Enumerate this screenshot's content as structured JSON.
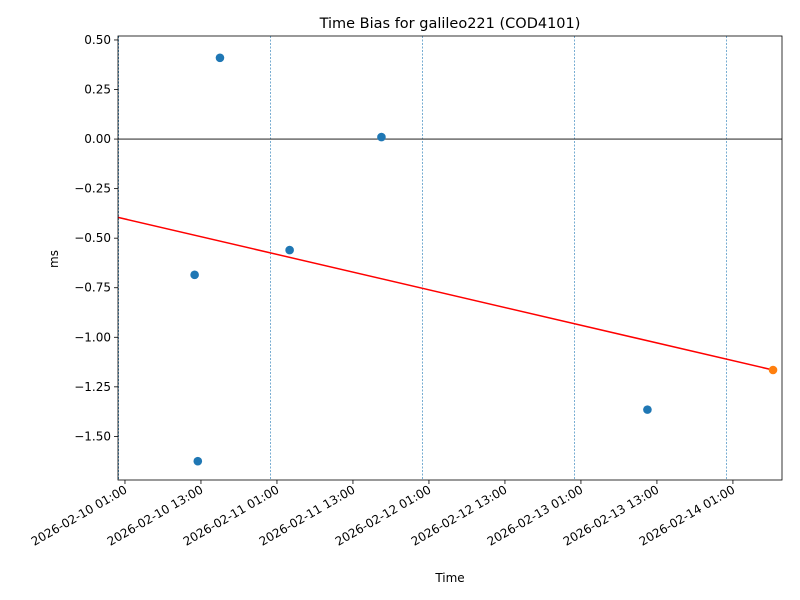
{
  "chart_data": {
    "type": "scatter",
    "title": "Time Bias for galileo221 (COD4101)",
    "xlabel": "Time",
    "ylabel": "ms",
    "xlim": [
      "2026-02-09T23:54",
      "2026-02-14T08:45"
    ],
    "ylim": [
      -1.72,
      0.52
    ],
    "x_ticks": [
      "2026-02-10 01:00",
      "2026-02-10 13:00",
      "2026-02-11 01:00",
      "2026-02-11 13:00",
      "2026-02-12 01:00",
      "2026-02-12 13:00",
      "2026-02-13 01:00",
      "2026-02-13 13:00",
      "2026-02-14 01:00"
    ],
    "y_ticks": [
      "0.50",
      "0.25",
      "0.00",
      "−0.25",
      "−0.50",
      "−0.75",
      "−1.00",
      "−1.25",
      "−1.50"
    ],
    "y_tick_values": [
      0.5,
      0.25,
      0.0,
      -0.25,
      -0.5,
      -0.75,
      -1.0,
      -1.25,
      -1.5
    ],
    "day_markers": [
      "2026-02-10T00:00",
      "2026-02-11T00:00",
      "2026-02-12T00:00",
      "2026-02-13T00:00",
      "2026-02-14T00:00"
    ],
    "zero_line": 0,
    "series": [
      {
        "color": "#1f77b4",
        "points": [
          {
            "x": "2026-02-10T12:00",
            "y": -0.685
          },
          {
            "x": "2026-02-10T12:30",
            "y": -1.625
          },
          {
            "x": "2026-02-10T16:00",
            "y": 0.41
          },
          {
            "x": "2026-02-11T03:00",
            "y": -0.56
          },
          {
            "x": "2026-02-11T17:30",
            "y": 0.01
          },
          {
            "x": "2026-02-13T11:30",
            "y": -1.365
          }
        ]
      },
      {
        "color": "#ff7f0e",
        "points": [
          {
            "x": "2026-02-14T07:20",
            "y": -1.165
          }
        ]
      }
    ],
    "trend_line": {
      "color": "#ff0000",
      "from": {
        "x": "2026-02-09T23:54",
        "y": -0.395
      },
      "to": {
        "x": "2026-02-14T07:20",
        "y": -1.165
      }
    }
  }
}
